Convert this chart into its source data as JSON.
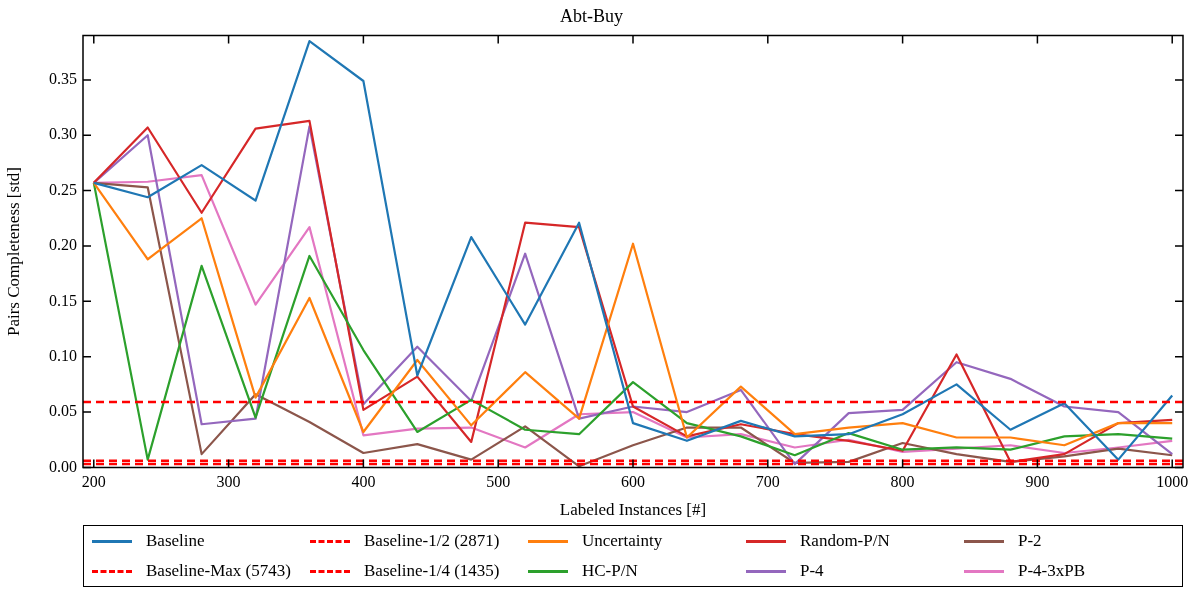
{
  "chart_data": {
    "type": "line",
    "title": "Abt-Buy",
    "xlabel": "Labeled Instances [#]",
    "ylabel": "Pairs Completeness [std]",
    "x": [
      200,
      240,
      280,
      320,
      360,
      400,
      440,
      480,
      520,
      560,
      600,
      640,
      680,
      720,
      760,
      800,
      840,
      880,
      920,
      960,
      1000
    ],
    "xlim": [
      192,
      1008
    ],
    "xticks": [
      200,
      300,
      400,
      500,
      600,
      700,
      800,
      900,
      1000
    ],
    "ylim": [
      0,
      0.39
    ],
    "yticks": [
      {
        "value": 0,
        "label": "0.00"
      },
      0.05,
      {
        "value": 0.1,
        "label": "0.10"
      },
      0.15,
      {
        "value": 0.2,
        "label": "0.20"
      },
      0.25,
      {
        "value": 0.3,
        "label": "0.30"
      },
      0.35
    ],
    "grid": false,
    "legend": "bottom",
    "marker": "none",
    "line_style": "solid",
    "series": [
      {
        "name": "Baseline",
        "color": "#1f77b4",
        "values": [
          0.257,
          0.244,
          0.273,
          0.241,
          0.385,
          0.349,
          0.083,
          0.208,
          0.129,
          0.221,
          0.04,
          0.024,
          0.042,
          0.028,
          0.03,
          0.048,
          0.075,
          0.034,
          0.058,
          0.007,
          0.065
        ]
      },
      {
        "name": "Uncertainty",
        "color": "#ff7f0e",
        "values": [
          0.257,
          0.188,
          0.225,
          0.063,
          0.153,
          0.032,
          0.097,
          0.038,
          0.086,
          0.044,
          0.202,
          0.027,
          0.073,
          0.03,
          0.036,
          0.04,
          0.027,
          0.027,
          0.02,
          0.04,
          0.04
        ]
      },
      {
        "name": "HC-P/N",
        "color": "#2ca02c",
        "values": [
          0.257,
          0.007,
          0.182,
          0.045,
          0.191,
          0.106,
          0.032,
          0.061,
          0.034,
          0.03,
          0.077,
          0.04,
          0.028,
          0.011,
          0.031,
          0.016,
          0.018,
          0.016,
          0.028,
          0.03,
          0.026
        ]
      },
      {
        "name": "Random-P/N",
        "color": "#d62728",
        "values": [
          0.257,
          0.307,
          0.23,
          0.306,
          0.313,
          0.052,
          0.082,
          0.023,
          0.221,
          0.217,
          0.055,
          0.028,
          0.039,
          0.03,
          0.024,
          0.015,
          0.102,
          0.005,
          0.012,
          0.04,
          0.043
        ]
      },
      {
        "name": "P-4",
        "color": "#9467bd",
        "values": [
          0.257,
          0.3,
          0.039,
          0.044,
          0.308,
          0.057,
          0.109,
          0.06,
          0.193,
          0.044,
          0.055,
          0.05,
          0.07,
          0.003,
          0.049,
          0.052,
          0.095,
          0.08,
          0.055,
          0.05,
          0.012
        ]
      },
      {
        "name": "P-2",
        "color": "#8c564b",
        "values": [
          0.257,
          0.253,
          0.012,
          0.066,
          0.041,
          0.013,
          0.021,
          0.007,
          0.037,
          0.001,
          0.02,
          0.036,
          0.036,
          0.004,
          0.005,
          0.022,
          0.012,
          0.005,
          0.01,
          0.017,
          0.011
        ]
      },
      {
        "name": "P-4-3xPB",
        "color": "#e377c2",
        "values": [
          0.257,
          0.258,
          0.264,
          0.147,
          0.217,
          0.029,
          0.035,
          0.036,
          0.018,
          0.048,
          0.05,
          0.027,
          0.03,
          0.018,
          0.025,
          0.014,
          0.017,
          0.02,
          0.013,
          0.018,
          0.024
        ]
      }
    ],
    "ref_lines": [
      {
        "axis": "y",
        "value": 0.003,
        "label": "Baseline-Max (5743)",
        "color": "#ff0000",
        "line_style": "dashed"
      },
      {
        "axis": "y",
        "value": 0.059,
        "label": "Baseline-1/2 (2871)",
        "color": "#ff0000",
        "line_style": "dashed"
      },
      {
        "axis": "y",
        "value": 0.006,
        "label": "Baseline-1/4 (1435)",
        "color": "#ff0000",
        "line_style": "dashed"
      }
    ]
  }
}
